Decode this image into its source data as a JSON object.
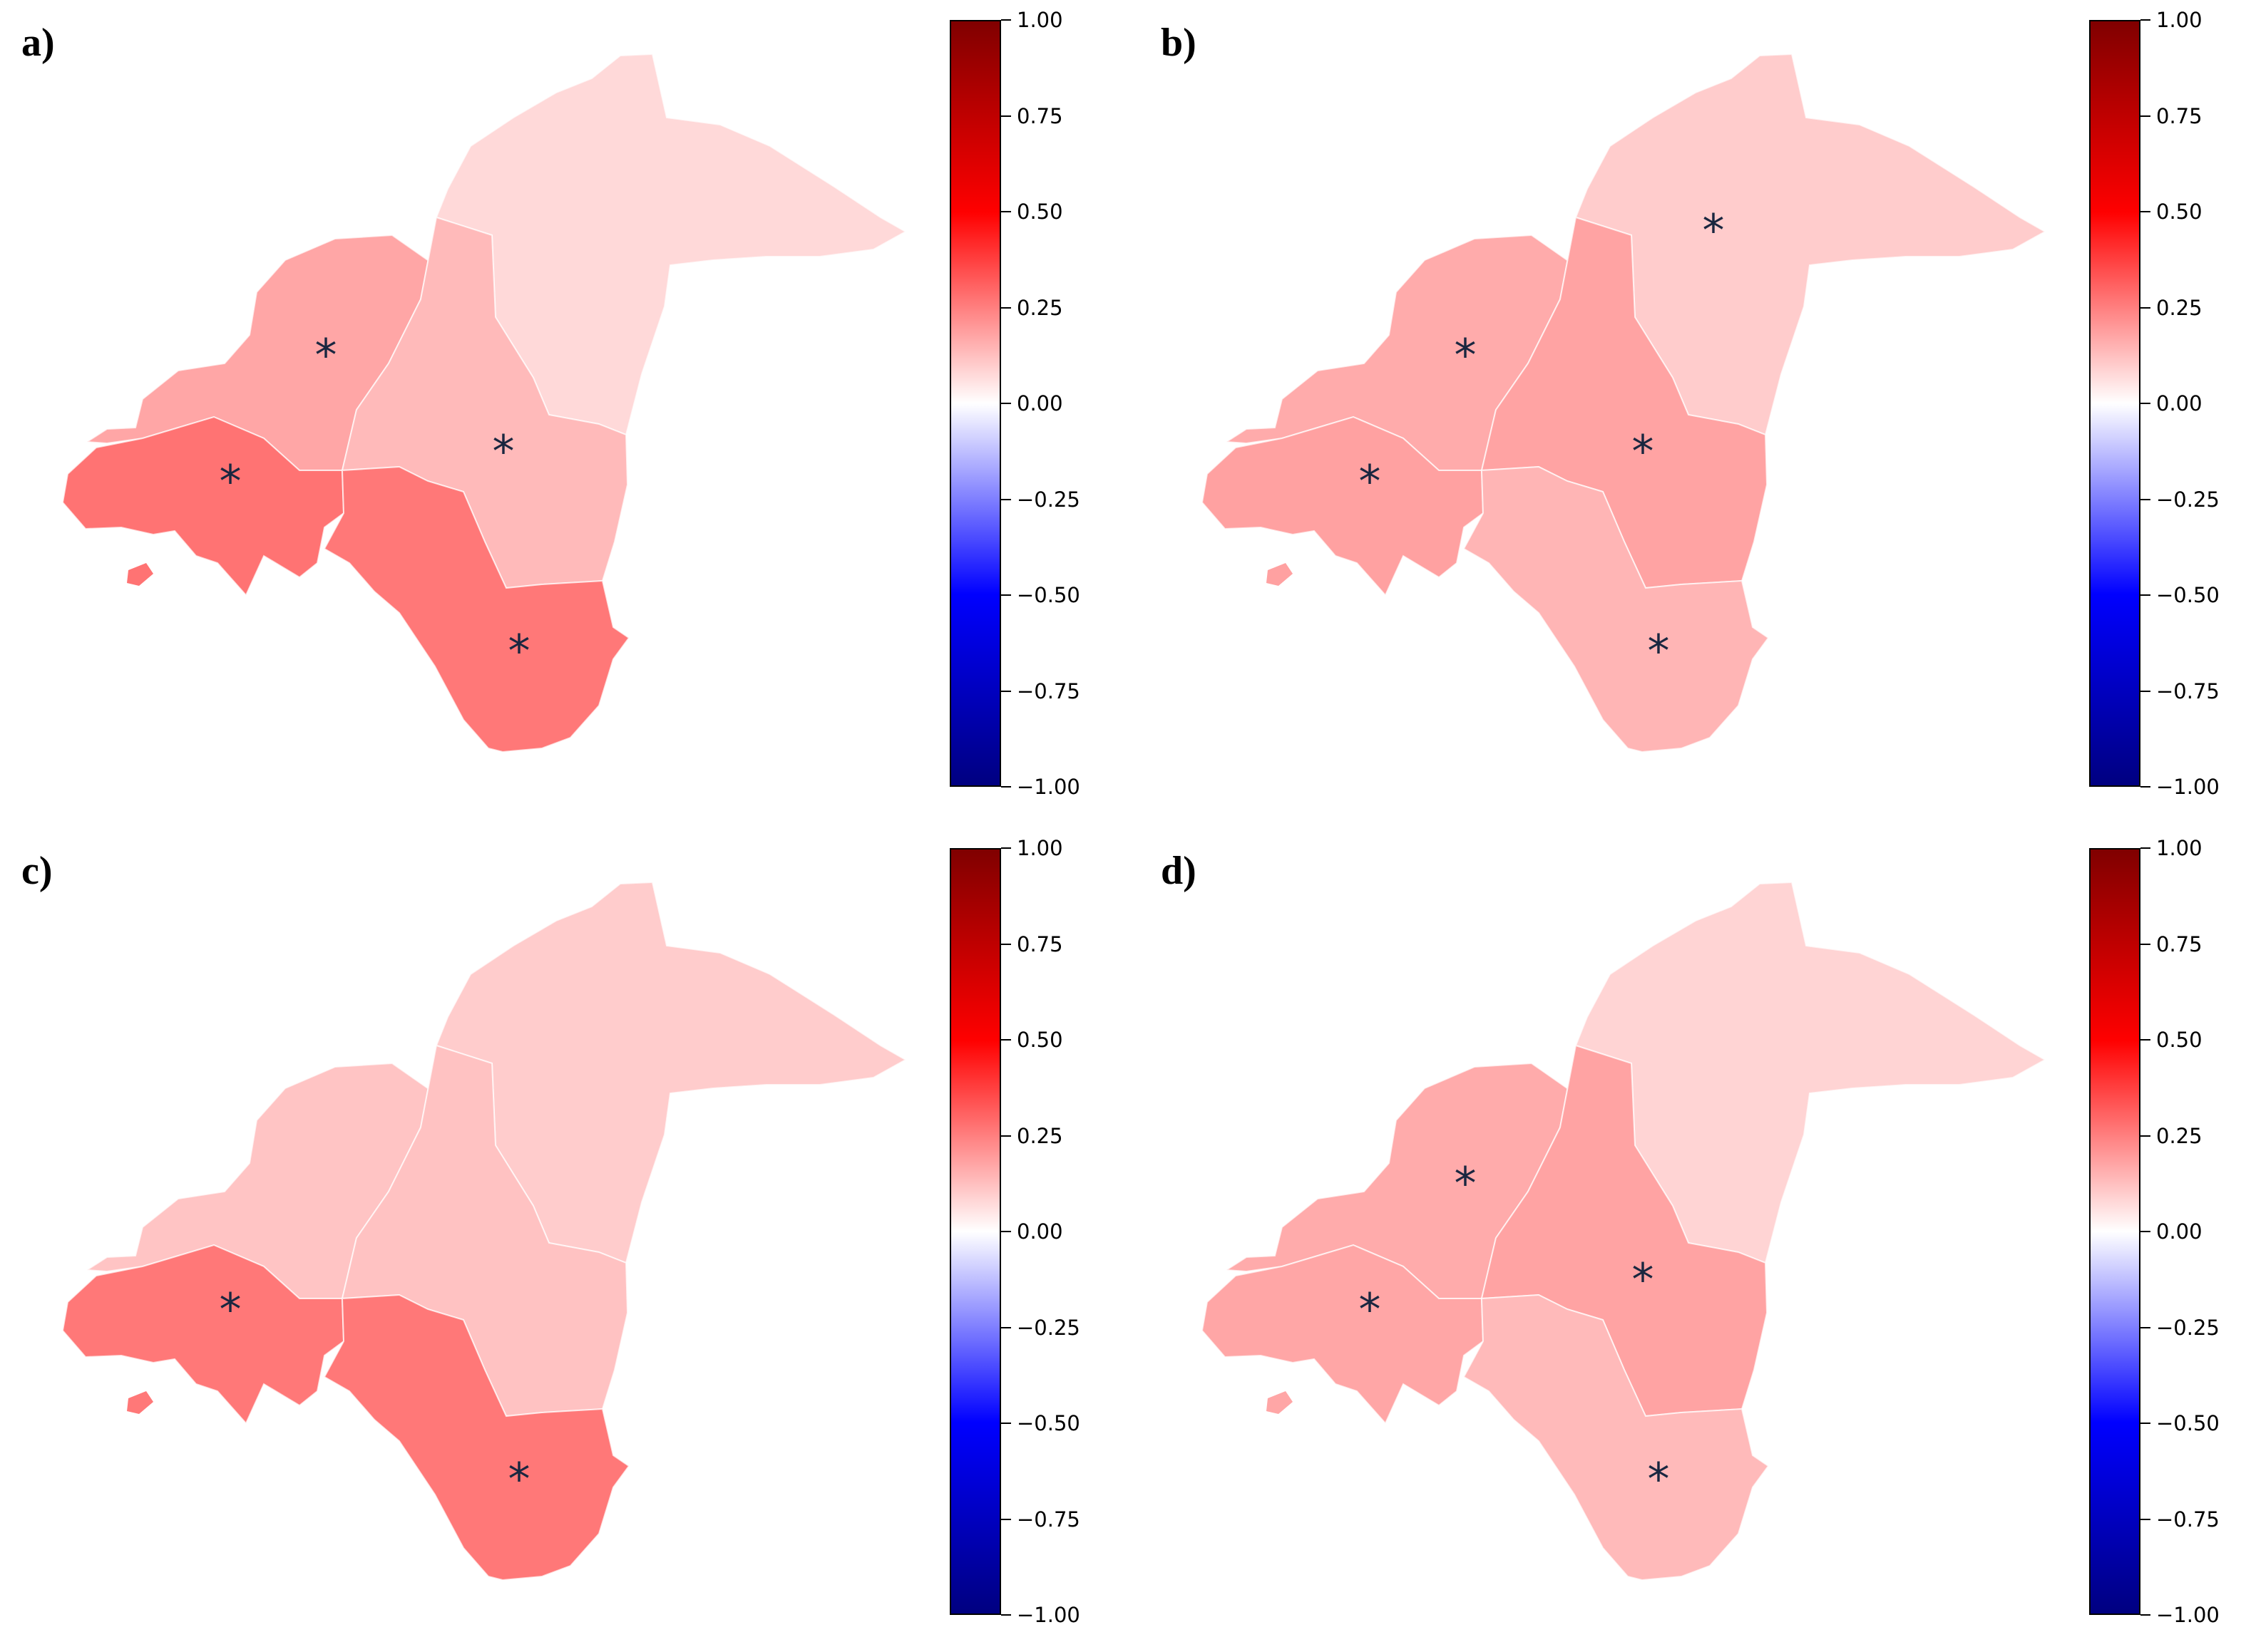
{
  "colorbar": {
    "ticks": [
      "1.00",
      "0.75",
      "0.50",
      "0.25",
      "0.00",
      "−0.25",
      "−0.50",
      "−0.75",
      "−1.00"
    ],
    "range": [
      -1,
      1
    ],
    "colormap": "bwr"
  },
  "marker_symbol": "*",
  "panels": [
    {
      "label": "a)",
      "values": {
        "north_east": 0.15,
        "north_west": 0.35,
        "centre": 0.27,
        "south_west": 0.55,
        "south": 0.53
      },
      "significant": [
        "north_west",
        "centre",
        "south_west",
        "south"
      ]
    },
    {
      "label": "b)",
      "values": {
        "north_east": 0.2,
        "north_west": 0.33,
        "centre": 0.36,
        "south_west": 0.37,
        "south": 0.29
      },
      "significant": [
        "north_east",
        "north_west",
        "centre",
        "south_west",
        "south"
      ]
    },
    {
      "label": "c)",
      "values": {
        "north_east": 0.2,
        "north_west": 0.23,
        "centre": 0.24,
        "south_west": 0.53,
        "south": 0.53
      },
      "significant": [
        "south_west",
        "south"
      ]
    },
    {
      "label": "d)",
      "values": {
        "north_east": 0.17,
        "north_west": 0.33,
        "centre": 0.36,
        "south_west": 0.35,
        "south": 0.27
      },
      "significant": [
        "north_west",
        "centre",
        "south_west",
        "south"
      ]
    }
  ]
}
